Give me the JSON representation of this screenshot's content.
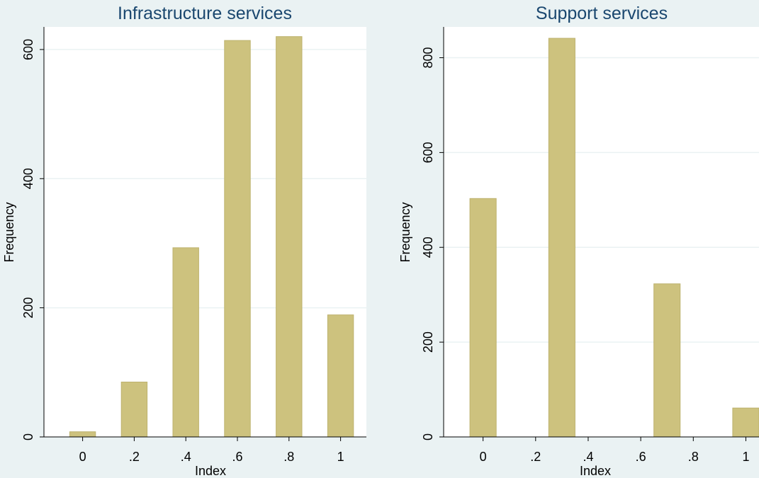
{
  "chart_data": [
    {
      "type": "bar",
      "title": "Infrastructure services",
      "xlabel": "Index",
      "ylabel": "Frequency",
      "x": [
        0,
        0.2,
        0.4,
        0.6,
        0.8,
        1
      ],
      "values": [
        8,
        85,
        293,
        614,
        620,
        189
      ],
      "bar_width": 0.1,
      "xlim": [
        -0.15,
        1.1
      ],
      "ylim": [
        0,
        635
      ],
      "xticks": [
        0,
        0.2,
        0.4,
        0.6,
        0.8,
        1
      ],
      "xtick_labels": [
        "0",
        ".2",
        ".4",
        ".6",
        ".8",
        "1"
      ],
      "yticks": [
        0,
        200,
        400,
        600
      ],
      "ytick_labels": [
        "0",
        "200",
        "400",
        "600"
      ],
      "grid": true,
      "bar_color": "#cdc27e",
      "bar_edge_color": "#bdb26e",
      "background_color": "#eaf2f3",
      "plot_background_color": "#ffffff",
      "title_color": "#1a476f",
      "grid_color": "#eaf2f3"
    },
    {
      "type": "bar",
      "title": "Support services",
      "xlabel": "Index",
      "ylabel": "Frequency",
      "x": [
        0,
        0.3,
        0.7,
        1
      ],
      "values": [
        503,
        841,
        323,
        61
      ],
      "bar_width": 0.1,
      "xlim": [
        -0.15,
        1.05
      ],
      "ylim": [
        0,
        865
      ],
      "xticks": [
        0,
        0.2,
        0.4,
        0.6,
        0.8,
        1
      ],
      "xtick_labels": [
        "0",
        ".2",
        ".4",
        ".6",
        ".8",
        "1"
      ],
      "yticks": [
        0,
        200,
        400,
        600,
        800
      ],
      "ytick_labels": [
        "0",
        "200",
        "400",
        "600",
        "800"
      ],
      "grid": true,
      "bar_color": "#cdc27e",
      "bar_edge_color": "#bdb26e",
      "background_color": "#eaf2f3",
      "plot_background_color": "#ffffff",
      "title_color": "#1a476f",
      "grid_color": "#eaf2f3"
    }
  ]
}
